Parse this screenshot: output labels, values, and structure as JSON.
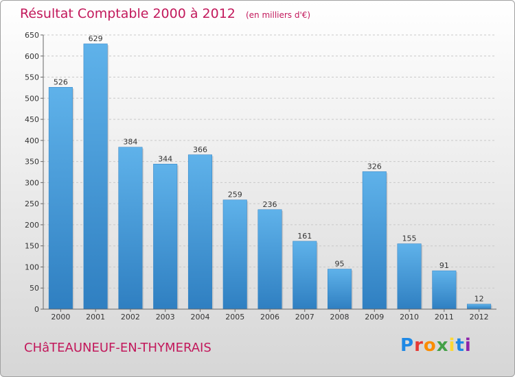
{
  "title": "Résultat Comptable 2000 à 2012",
  "subtitle": "(en milliers d'€)",
  "commune": "CHâTEAUNEUF-EN-THYMERAIS",
  "logo": {
    "letters": [
      "P",
      "r",
      "o",
      "x",
      "i",
      "t",
      "i"
    ],
    "colors": [
      "#1e88e5",
      "#e53935",
      "#fb8c00",
      "#43a047",
      "#fdd835",
      "#1e88e5",
      "#8e24aa"
    ]
  },
  "colors": {
    "bar": "#4aa3e0",
    "bar_dark": "#2f7fc1",
    "title": "#c2185b"
  },
  "chart_data": {
    "type": "bar",
    "title": "Résultat Comptable 2000 à 2012",
    "ylabel": "(en milliers d'€)",
    "xlabel": "",
    "categories": [
      "2000",
      "2001",
      "2002",
      "2003",
      "2004",
      "2005",
      "2006",
      "2007",
      "2008",
      "2009",
      "2010",
      "2011",
      "2012"
    ],
    "values": [
      526,
      629,
      384,
      344,
      366,
      259,
      236,
      161,
      95,
      326,
      155,
      91,
      12
    ],
    "ylim": [
      0,
      650
    ],
    "yticks": [
      0,
      50,
      100,
      150,
      200,
      250,
      300,
      350,
      400,
      450,
      500,
      550,
      600,
      650
    ],
    "grid": true
  }
}
